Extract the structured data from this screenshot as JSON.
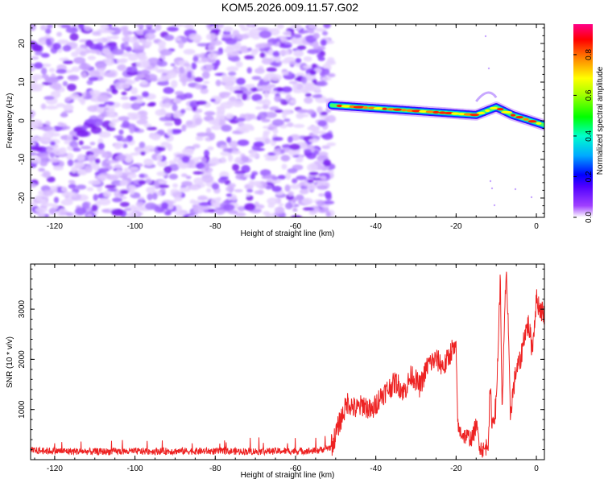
{
  "title": "KOM5.2026.009.11.57.G02",
  "chart_data": [
    {
      "type": "heatmap",
      "title": "KOM5.2026.009.11.57.G02",
      "xlabel": "Height of straight line (km)",
      "ylabel": "Frequency (Hz)",
      "xlim": [
        -126,
        2
      ],
      "ylim": [
        -25,
        25
      ],
      "xticks": [
        -120,
        -100,
        -80,
        -60,
        -40,
        -20,
        0
      ],
      "yticks": [
        -20,
        -10,
        0,
        10,
        20
      ],
      "colorbar": {
        "label": "Normalized spectral amplitude",
        "range": [
          0,
          0.95
        ],
        "ticks": [
          0.0,
          0.2,
          0.4,
          0.6,
          0.8
        ],
        "colors": [
          "#ffffff",
          "#8800ff",
          "#0000ff",
          "#00aaff",
          "#00ffaa",
          "#00ff00",
          "#ffff00",
          "#ff8800",
          "#ff0000",
          "#ff0088"
        ]
      },
      "regions": [
        {
          "name": "noise",
          "x_range": [
            -126,
            -51
          ],
          "f_range": [
            -25,
            25
          ],
          "amplitude_range": [
            0.02,
            0.2
          ]
        },
        {
          "name": "signal",
          "x_range": [
            -51,
            2
          ],
          "center_freq_start": 4,
          "center_freq_end": -0.5,
          "amplitude_range": [
            0.3,
            0.95
          ]
        }
      ]
    },
    {
      "type": "line",
      "xlabel": "Height of straight line (km)",
      "ylabel": "SNR (10 * v/v)",
      "xlim": [
        -126,
        2
      ],
      "ylim": [
        0,
        3900
      ],
      "xticks": [
        -120,
        -100,
        -80,
        -60,
        -40,
        -20,
        0
      ],
      "yticks": [
        1000,
        2000,
        3000
      ],
      "color": "#ee2222",
      "series": [
        {
          "name": "SNR",
          "x": [
            -126,
            -110,
            -90,
            -70,
            -55,
            -51,
            -49,
            -47,
            -45,
            -43,
            -41,
            -39,
            -37,
            -35,
            -33,
            -31,
            -29,
            -27,
            -25,
            -23,
            -21,
            -20,
            -19.5,
            -18,
            -16,
            -15,
            -14,
            -13,
            -12,
            -11.5,
            -11,
            -10,
            -9,
            -8.5,
            -8,
            -7.5,
            -7,
            -6.5,
            -6,
            -5,
            -4,
            -3,
            -2,
            -1,
            0,
            1,
            2
          ],
          "y": [
            180,
            160,
            170,
            165,
            175,
            250,
            750,
            1150,
            1000,
            1100,
            950,
            1250,
            1400,
            1550,
            1350,
            1700,
            1450,
            1900,
            2000,
            1850,
            2200,
            2150,
            600,
            480,
            420,
            700,
            250,
            180,
            350,
            1400,
            700,
            1100,
            3600,
            900,
            2600,
            3850,
            2600,
            900,
            1250,
            1800,
            1950,
            2500,
            2700,
            2200,
            3200,
            3000,
            2900
          ]
        }
      ]
    }
  ]
}
